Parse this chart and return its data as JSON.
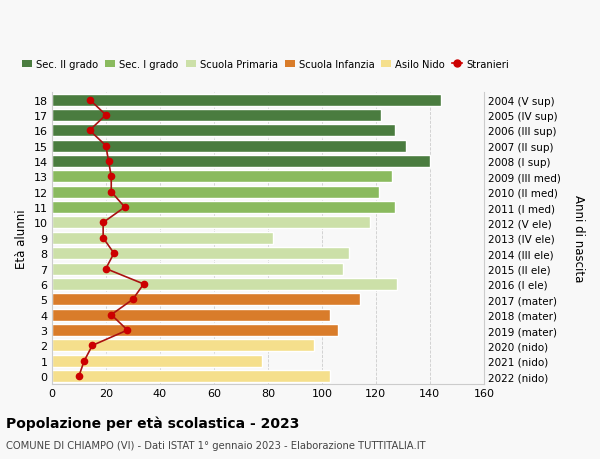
{
  "ages": [
    0,
    1,
    2,
    3,
    4,
    5,
    6,
    7,
    8,
    9,
    10,
    11,
    12,
    13,
    14,
    15,
    16,
    17,
    18
  ],
  "anni_nascita": [
    "2022 (nido)",
    "2021 (nido)",
    "2020 (nido)",
    "2019 (mater)",
    "2018 (mater)",
    "2017 (mater)",
    "2016 (I ele)",
    "2015 (II ele)",
    "2014 (III ele)",
    "2013 (IV ele)",
    "2012 (V ele)",
    "2011 (I med)",
    "2010 (II med)",
    "2009 (III med)",
    "2008 (I sup)",
    "2007 (II sup)",
    "2006 (III sup)",
    "2005 (IV sup)",
    "2004 (V sup)"
  ],
  "bar_values": [
    103,
    78,
    97,
    106,
    103,
    114,
    128,
    108,
    110,
    82,
    118,
    127,
    121,
    126,
    140,
    131,
    127,
    122,
    144
  ],
  "bar_colors": [
    "#f5df8c",
    "#f5df8c",
    "#f5df8c",
    "#d97c2a",
    "#d97c2a",
    "#d97c2a",
    "#cce0a8",
    "#cce0a8",
    "#cce0a8",
    "#cce0a8",
    "#cce0a8",
    "#8aba5e",
    "#8aba5e",
    "#8aba5e",
    "#4a7c3f",
    "#4a7c3f",
    "#4a7c3f",
    "#4a7c3f",
    "#4a7c3f"
  ],
  "stranieri": [
    10,
    12,
    15,
    28,
    22,
    30,
    34,
    20,
    23,
    19,
    19,
    27,
    22,
    22,
    21,
    20,
    14,
    20,
    14
  ],
  "legend_labels": [
    "Sec. II grado",
    "Sec. I grado",
    "Scuola Primaria",
    "Scuola Infanzia",
    "Asilo Nido",
    "Stranieri"
  ],
  "legend_colors": [
    "#4a7c3f",
    "#8aba5e",
    "#cce0a8",
    "#d97c2a",
    "#f5df8c",
    "#cc0000"
  ],
  "legend_marker_colors": [
    "#4a7c3f",
    "#8aba5e",
    "#cce0a8",
    "#d97c2a",
    "#f5df8c"
  ],
  "title": "Popolazione per età scolastica - 2023",
  "subtitle": "COMUNE DI CHIAMPO (VI) - Dati ISTAT 1° gennaio 2023 - Elaborazione TUTTITALIA.IT",
  "ylabel_left": "Età alunni",
  "ylabel_right": "Anni di nascita",
  "xlim": [
    0,
    160
  ],
  "bg_color": "#f8f8f8",
  "plot_bg": "#ffffff",
  "grid_color": "#cccccc"
}
